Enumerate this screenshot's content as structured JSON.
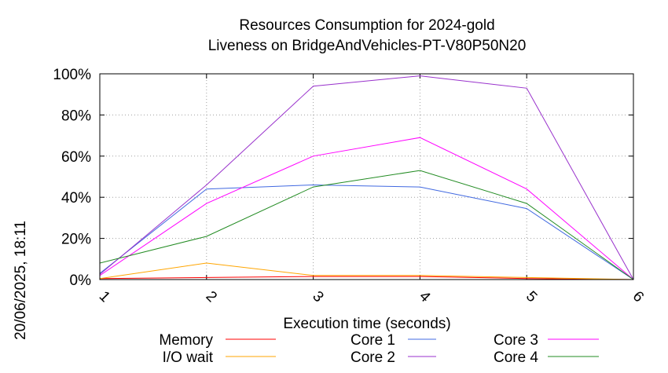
{
  "chart_data": {
    "type": "line",
    "title": "Resources Consumption for 2024-gold",
    "subtitle": "Liveness on BridgeAndVehicles-PT-V80P50N20",
    "xlabel": "Execution time (seconds)",
    "ylabel": "",
    "x": [
      1,
      2,
      3,
      4,
      5,
      6
    ],
    "x_ticks": [
      "1",
      "2",
      "3",
      "4",
      "5",
      "6"
    ],
    "xlim": [
      1,
      6
    ],
    "ylim": [
      0,
      100
    ],
    "y_ticks": [
      "0%",
      "20%",
      "40%",
      "60%",
      "80%",
      "100%"
    ],
    "y_tick_values": [
      0,
      20,
      40,
      60,
      80,
      100
    ],
    "grid": true,
    "legend_position": "bottom",
    "series": [
      {
        "name": "Memory",
        "color": "#ff0000",
        "values": [
          0.5,
          1,
          1.5,
          1.5,
          0.5,
          0
        ]
      },
      {
        "name": "I/O wait",
        "color": "#ffa500",
        "values": [
          0.5,
          8,
          2,
          2,
          1,
          0
        ]
      },
      {
        "name": "Core 1",
        "color": "#4169e1",
        "values": [
          3,
          44,
          46,
          45,
          34.5,
          0
        ]
      },
      {
        "name": "Core 2",
        "color": "#9932cc",
        "values": [
          2.5,
          46,
          94,
          99,
          93,
          0
        ]
      },
      {
        "name": "Core 3",
        "color": "#ff00ff",
        "values": [
          2,
          37,
          60,
          69,
          44,
          0
        ]
      },
      {
        "name": "Core 4",
        "color": "#228b22",
        "values": [
          8,
          21,
          45,
          53,
          37,
          0
        ]
      }
    ]
  },
  "timestamp": "20/06/2025, 18:11"
}
